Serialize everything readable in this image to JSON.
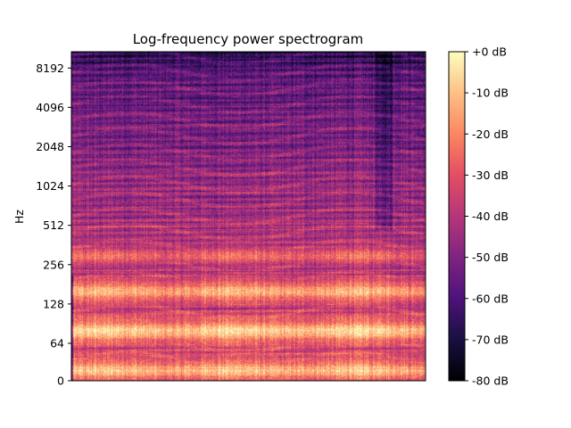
{
  "chart_data": {
    "type": "heatmap",
    "title": "Log-frequency power spectrogram",
    "ylabel": "Hz",
    "xlabel": "",
    "y_scale": "log",
    "y_tick_labels": [
      "0",
      "64",
      "128",
      "256",
      "512",
      "1024",
      "2048",
      "4096",
      "8192"
    ],
    "colormap": "magma",
    "colorbar": {
      "range_db": [
        -80,
        0
      ],
      "tick_labels": [
        "+0 dB",
        "-10 dB",
        "-20 dB",
        "-30 dB",
        "-40 dB",
        "-50 dB",
        "-60 dB",
        "-70 dB",
        "-80 dB"
      ]
    },
    "grid": false,
    "notes_bands_hz": [
      {
        "center": 40,
        "level_db": -8
      },
      {
        "center": 80,
        "level_db": -5
      },
      {
        "center": 160,
        "level_db": -10
      },
      {
        "center": 300,
        "level_db": -22
      }
    ]
  }
}
